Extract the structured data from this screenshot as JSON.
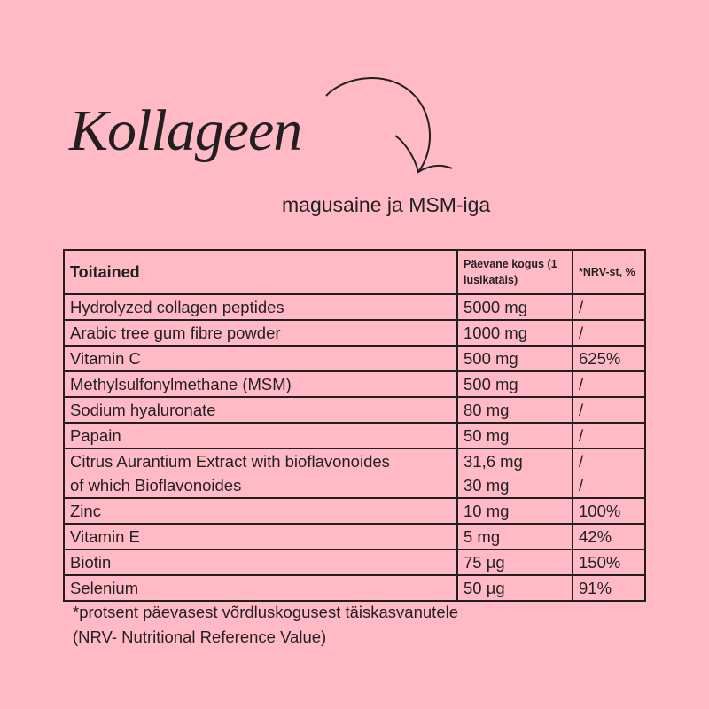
{
  "title": "Kollageen",
  "subtitle": "magusaine ja MSM-iga",
  "table": {
    "headers": [
      "Toitained",
      "Päevane kogus (1 lusikatäis)",
      "*NRV-st, %"
    ],
    "rows": [
      {
        "name": "Hydrolyzed collagen peptides",
        "amount": "5000 mg",
        "nrv": "/"
      },
      {
        "name": "Arabic tree gum fibre powder",
        "amount": "1000 mg",
        "nrv": "/"
      },
      {
        "name": "Vitamin C",
        "amount": "500 mg",
        "nrv": "625%"
      },
      {
        "name": "Methylsulfonylmethane (MSM)",
        "amount": "500 mg",
        "nrv": "/"
      },
      {
        "name": "Sodium hyaluronate",
        "amount": "80 mg",
        "nrv": "/"
      },
      {
        "name": "Papain",
        "amount": "50 mg",
        "nrv": "/"
      },
      {
        "name": "Citrus Aurantium Extract with bioflavonoides",
        "amount": "31,6 mg",
        "nrv": "/",
        "sub_name": "of which Bioflavonoides",
        "sub_amount": "30 mg",
        "sub_nrv": "/"
      },
      {
        "name": "Zinc",
        "amount": "10 mg",
        "nrv": "100%"
      },
      {
        "name": "Vitamin E",
        "amount": "5 mg",
        "nrv": "42%"
      },
      {
        "name": "Biotin",
        "amount": "75 µg",
        "nrv": "150%"
      },
      {
        "name": "Selenium",
        "amount": "50 µg",
        "nrv": "91%"
      }
    ]
  },
  "footnote": [
    "*protsent päevasest võrdluskogusest täiskasvanutele",
    "(NRV- Nutritional Reference Value)"
  ],
  "colors": {
    "background": "#ffbac6",
    "text": "#231f20"
  }
}
